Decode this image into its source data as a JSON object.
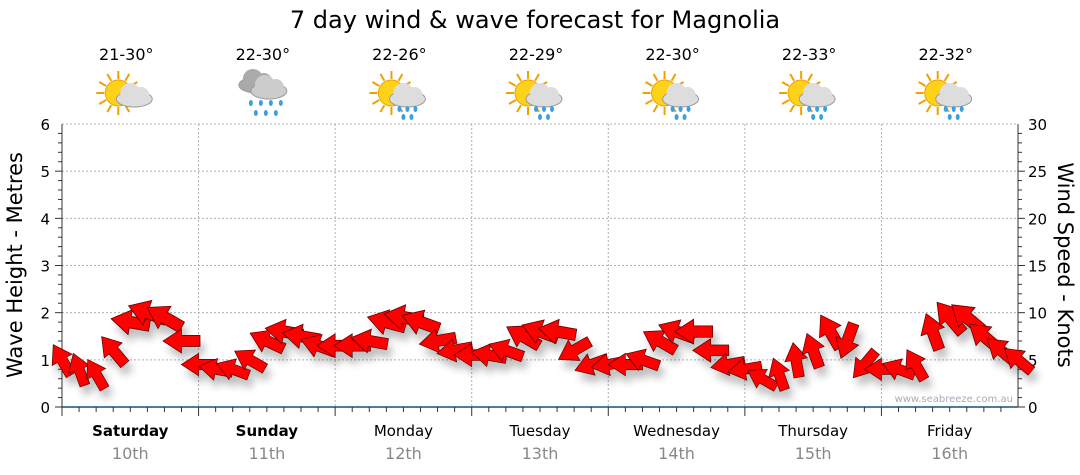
{
  "chart_data": {
    "type": "line",
    "title": "7 day wind & wave forecast for Magnolia",
    "ylabel_left": "Wave Height - Metres",
    "ylabel_right": "Wind Speed - Knots",
    "ylim_left": [
      0,
      6
    ],
    "ylim_right": [
      0,
      30
    ],
    "yticks_left": [
      "0",
      "1",
      "2",
      "3",
      "4",
      "5",
      "6"
    ],
    "yticks_right": [
      "0",
      "5",
      "10",
      "15",
      "20",
      "25",
      "30"
    ],
    "grid": true,
    "watermark": "www.seabreeze.com.au",
    "days": [
      {
        "name": "Saturday",
        "date": "10th",
        "bold": true,
        "temp": "21-30°",
        "icon": "sun-cloud-icon"
      },
      {
        "name": "Sunday",
        "date": "11th",
        "bold": true,
        "temp": "22-30°",
        "icon": "rain-cloud-icon"
      },
      {
        "name": "Monday",
        "date": "12th",
        "bold": false,
        "temp": "22-26°",
        "icon": "sun-cloud-rain-icon"
      },
      {
        "name": "Tuesday",
        "date": "13th",
        "bold": false,
        "temp": "22-29°",
        "icon": "sun-cloud-rain-icon"
      },
      {
        "name": "Wednesday",
        "date": "14th",
        "bold": false,
        "temp": "22-30°",
        "icon": "sun-cloud-rain-icon"
      },
      {
        "name": "Thursday",
        "date": "15th",
        "bold": false,
        "temp": "22-33°",
        "icon": "sun-cloud-rain-icon"
      },
      {
        "name": "Friday",
        "date": "16th",
        "bold": false,
        "temp": "22-32°",
        "icon": "sun-cloud-rain-icon"
      }
    ],
    "wind_interval_hours": 3,
    "wind_speed_knots": [
      5,
      4,
      3.5,
      6,
      9,
      10,
      9.5,
      7,
      4.5,
      4,
      4,
      5,
      7,
      8,
      7.5,
      6.5,
      6.5,
      6.5,
      7,
      9,
      9.5,
      9,
      7,
      6,
      5.5,
      5.5,
      6,
      7.5,
      8,
      8,
      6,
      4.5,
      4.5,
      4.5,
      5,
      7,
      8,
      8,
      6,
      4.5,
      4,
      3,
      3.5,
      5,
      6,
      8,
      7,
      4.5,
      4,
      4,
      4.5,
      8,
      9.5,
      9.5,
      7.5,
      6,
      5
    ],
    "wind_from_deg": [
      150,
      160,
      150,
      140,
      100,
      110,
      120,
      90,
      90,
      100,
      110,
      120,
      115,
      100,
      100,
      110,
      90,
      90,
      100,
      105,
      100,
      110,
      80,
      80,
      90,
      100,
      110,
      120,
      110,
      100,
      60,
      70,
      80,
      90,
      110,
      120,
      110,
      90,
      90,
      80,
      80,
      120,
      160,
      170,
      160,
      150,
      20,
      40,
      90,
      110,
      150,
      160,
      140,
      130,
      130,
      130,
      130
    ],
    "colors": {
      "arrow": "#ff0000",
      "axis": "#1a4f7a",
      "grid": "#b0b0b0",
      "date": "#888888"
    }
  }
}
